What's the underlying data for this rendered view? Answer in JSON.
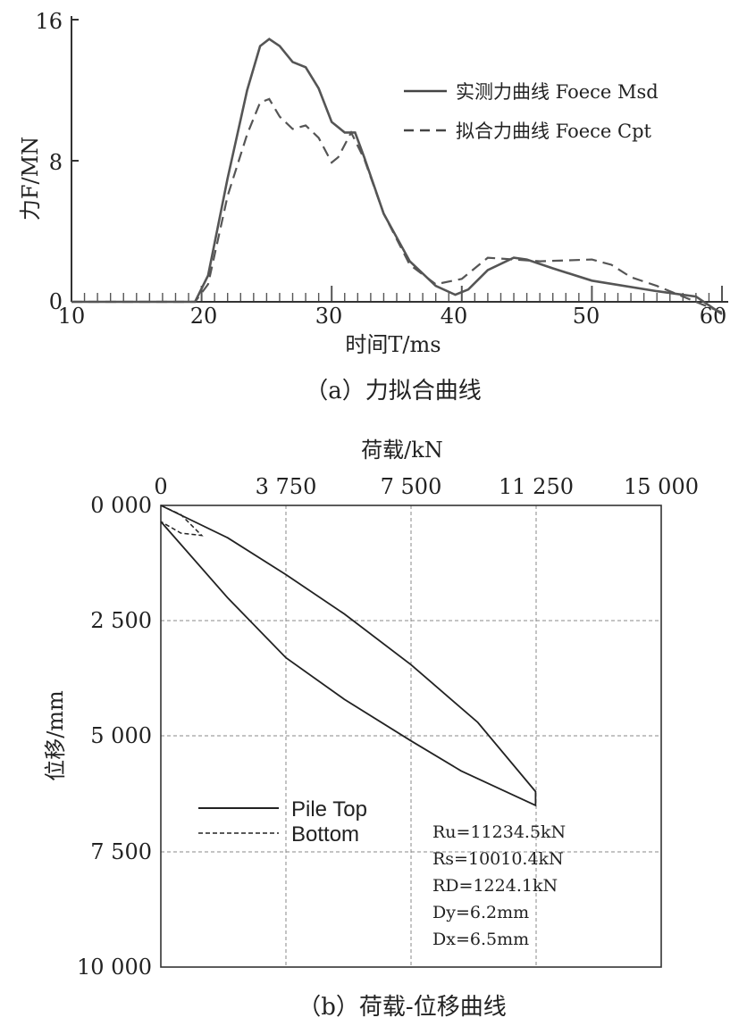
{
  "chart_data": [
    {
      "type": "line",
      "caption": "（a）力拟合曲线",
      "xlabel": "时间T/ms",
      "ylabel": "力F/MN",
      "xlim": [
        10,
        60
      ],
      "ylim": [
        0,
        16
      ],
      "xticks": [
        "10",
        "20",
        "30",
        "40",
        "50",
        "60"
      ],
      "yticks": [
        "0",
        "8",
        "16"
      ],
      "legend_position": "top-right",
      "series": [
        {
          "name": "实测力曲线 Foece Msd",
          "style": "solid",
          "x": [
            10,
            19.5,
            20.5,
            22,
            23.5,
            24.5,
            25.2,
            26,
            27,
            28,
            29,
            30,
            31,
            31.8,
            32.5,
            34,
            36,
            38,
            39.5,
            40.5,
            42,
            44,
            45,
            47,
            50,
            55,
            58,
            60
          ],
          "y": [
            0,
            0,
            1.5,
            7,
            12,
            14.5,
            14.9,
            14.5,
            13.6,
            13.3,
            12.1,
            10.2,
            9.6,
            9.6,
            8.2,
            5,
            2.3,
            0.9,
            0.4,
            0.7,
            1.8,
            2.5,
            2.4,
            1.9,
            1.2,
            0.6,
            0.3,
            -0.7
          ]
        },
        {
          "name": "拟合力曲线 Foece Cpt",
          "style": "dashed",
          "x": [
            10,
            19.5,
            20.5,
            22,
            23.5,
            24.5,
            25.2,
            26,
            27,
            28,
            29,
            30,
            30.5,
            31.5,
            32.5,
            34,
            36,
            38,
            40,
            42,
            44,
            46,
            50,
            51.5,
            53,
            55,
            57,
            60
          ],
          "y": [
            0,
            0,
            1,
            6,
            9.5,
            11.3,
            11.5,
            10.5,
            9.8,
            10.0,
            9.3,
            7.9,
            8.2,
            9.6,
            8.1,
            5,
            2.1,
            1.0,
            1.3,
            2.5,
            2.4,
            2.3,
            2.4,
            2.1,
            1.4,
            0.9,
            0.3,
            -0.6
          ]
        }
      ]
    },
    {
      "type": "line",
      "caption": "（b）荷载-位移曲线",
      "xlabel": "荷载/kN",
      "ylabel": "位移/mm",
      "xlim": [
        0,
        15000
      ],
      "ylim": [
        0,
        10000
      ],
      "xaxis_position": "top",
      "yaxis_inverted": true,
      "grid": true,
      "xticks": [
        "0",
        "3 750",
        "7 500",
        "11 250",
        "15 000"
      ],
      "yticks": [
        "0 000",
        "2 500",
        "5 000",
        "7 500",
        "10 000"
      ],
      "legend_position": "bottom-left",
      "series": [
        {
          "name": "Pile Top",
          "style": "solid",
          "x": [
            0,
            2000,
            3750,
            5500,
            7500,
            9500,
            11234.5,
            11234.5,
            9000,
            7500,
            5500,
            3750,
            2000,
            0
          ],
          "y": [
            0,
            700,
            1500,
            2350,
            3450,
            4700,
            6200,
            6500,
            5750,
            5100,
            4200,
            3300,
            2000,
            350
          ]
        },
        {
          "name": "Bottom",
          "style": "dashed",
          "x": [
            0,
            600,
            1224.1,
            600,
            0
          ],
          "y": [
            0,
            200,
            650,
            600,
            350
          ]
        }
      ],
      "annotations": [
        "Ru=11234.5kN",
        "Rs=10010.4kN",
        "RD=1224.1kN",
        "Dy=6.2mm",
        "Dx=6.5mm"
      ]
    }
  ]
}
